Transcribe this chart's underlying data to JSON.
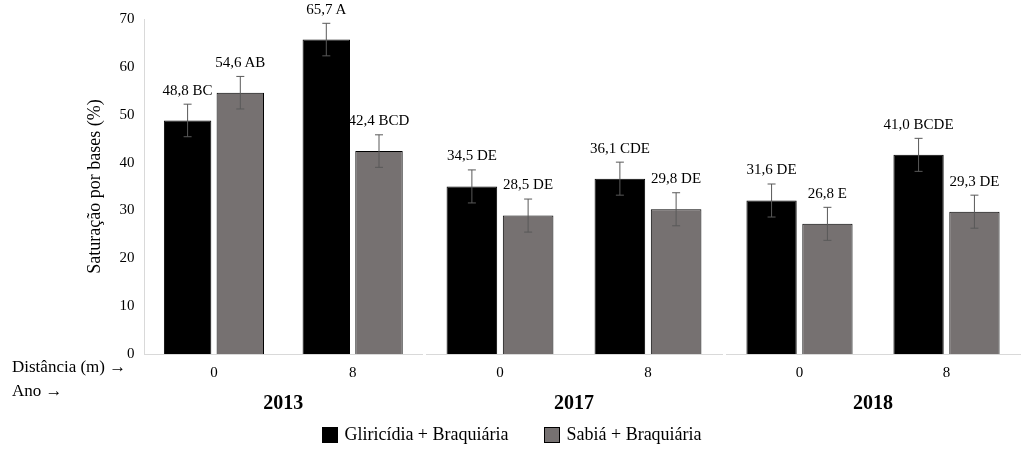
{
  "chart_data": [
    {
      "type": "bar",
      "xlabel": "2013",
      "ylabel": "Saturação por bases (%)",
      "categories": [
        "0",
        "8"
      ],
      "ylim": [
        0,
        70
      ],
      "yticks": [
        0,
        10,
        20,
        30,
        40,
        50,
        60,
        70
      ],
      "grid": false,
      "legend": "bottom",
      "annotations": [
        "Distância (m) →",
        "Ano →"
      ],
      "series": [
        {
          "name": "Gliricídia + Braquiária",
          "color": "#000000",
          "values": [
            48.8,
            65.7
          ],
          "errors": [
            3.4,
            3.4
          ],
          "value_labels": [
            "48,8 BC",
            "65,7 A"
          ]
        },
        {
          "name": "Sabiá + Braquiária",
          "color": "#767171",
          "values": [
            54.6,
            42.4
          ],
          "errors": [
            3.4,
            3.4
          ],
          "value_labels": [
            "54,6 AB",
            "42,4 BCD"
          ]
        }
      ]
    },
    {
      "type": "bar",
      "xlabel": "2017",
      "categories": [
        "0",
        "8"
      ],
      "ylim": [
        0,
        70
      ],
      "yticks": [
        0,
        10,
        20,
        30,
        40,
        50,
        60,
        70
      ],
      "grid": false,
      "tick_labels": "x",
      "series": [
        {
          "color": "#000000",
          "values": [
            34.5,
            36.1
          ],
          "errors": [
            3.4,
            3.4
          ],
          "value_labels": [
            "34,5 DE",
            "36,1 CDE"
          ]
        },
        {
          "color": "#767171",
          "values": [
            28.5,
            29.8
          ],
          "errors": [
            3.4,
            3.4
          ],
          "value_labels": [
            "28,5 DE",
            "29,8 DE"
          ]
        }
      ]
    },
    {
      "type": "bar",
      "xlabel": "2018",
      "categories": [
        "0",
        "8"
      ],
      "ylim": [
        0,
        70
      ],
      "yticks": [
        0,
        10,
        20,
        30,
        40,
        50,
        60,
        70
      ],
      "grid": false,
      "tick_labels": "x",
      "series": [
        {
          "color": "#000000",
          "values": [
            31.6,
            41.0
          ],
          "errors": [
            3.4,
            3.4
          ],
          "value_labels": [
            "31,6 DE",
            "41,0 BCDE"
          ]
        },
        {
          "color": "#767171",
          "values": [
            26.8,
            29.3
          ],
          "errors": [
            3.4,
            3.4
          ],
          "value_labels": [
            "26,8 E",
            "29,3 DE"
          ]
        }
      ]
    }
  ]
}
